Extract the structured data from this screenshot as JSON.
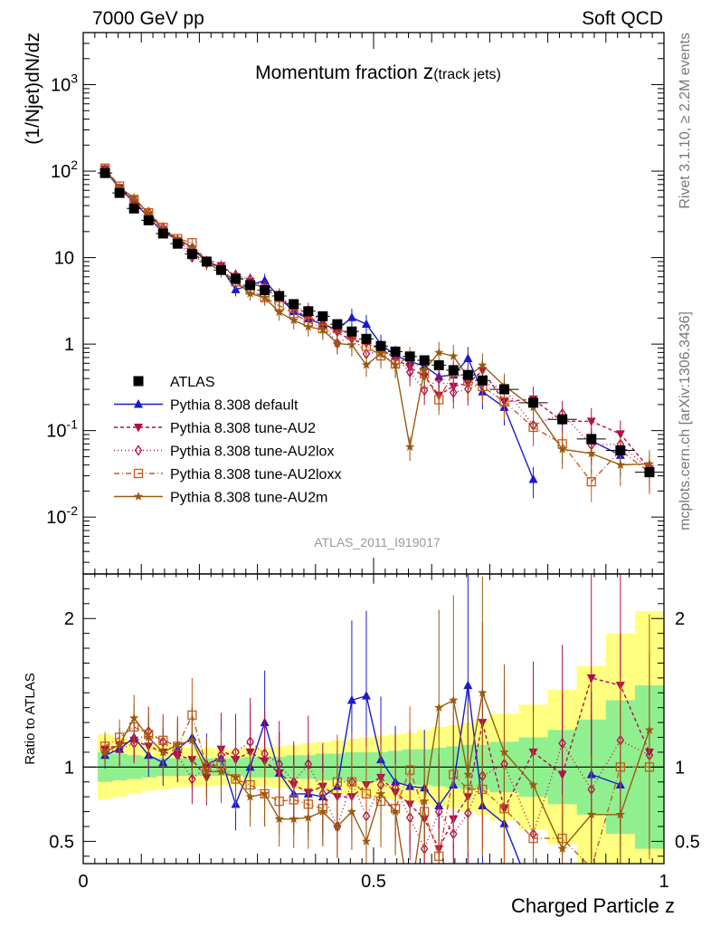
{
  "header": {
    "left": "7000 GeV pp",
    "right": "Soft QCD"
  },
  "side_text": {
    "rivet": "Rivet 3.1.10, ≥ 2.2M events",
    "site": "mcplots.cern.ch [arXiv:1306.3436]"
  },
  "watermark": "ATLAS_2011_I919017",
  "chart_data": {
    "type": "scatter",
    "title_main": "Momentum fraction ",
    "title_z": "z",
    "title_sub": "(track jets)",
    "ylabel": "(1/Njet)dN/dz",
    "xlabel": "Charged Particle z",
    "ratio_ylabel": "Ratio to ATLAS",
    "xlim": [
      0,
      1
    ],
    "ylim": [
      0.0022,
      4000
    ],
    "yscale": "log",
    "ratio_ylim": [
      0.35,
      2.3
    ],
    "x_ticks": [
      "0",
      "0.5",
      "1"
    ],
    "y_ticks": [
      {
        "v": 0.01,
        "label": "10",
        "sup": "-2"
      },
      {
        "v": 0.1,
        "label": "10",
        "sup": "-1"
      },
      {
        "v": 1,
        "label": "1",
        "sup": ""
      },
      {
        "v": 10,
        "label": "10",
        "sup": ""
      },
      {
        "v": 100,
        "label": "10",
        "sup": "2"
      },
      {
        "v": 1000,
        "label": "10",
        "sup": "3"
      }
    ],
    "ratio_ticks": [
      "0.5",
      "1",
      "2"
    ],
    "legend_position": "lower-left",
    "x": [
      0.0375,
      0.0625,
      0.0875,
      0.1125,
      0.1375,
      0.1625,
      0.1875,
      0.2125,
      0.2375,
      0.2625,
      0.2875,
      0.3125,
      0.3375,
      0.3625,
      0.3875,
      0.4125,
      0.4375,
      0.4625,
      0.4875,
      0.5125,
      0.5375,
      0.5625,
      0.5875,
      0.6125,
      0.6375,
      0.6625,
      0.6875,
      0.725,
      0.775,
      0.825,
      0.875,
      0.925,
      0.975
    ],
    "data": {
      "name": "ATLAS",
      "values": [
        95,
        56,
        37,
        27,
        19,
        14.5,
        11,
        9,
        7.2,
        5.7,
        4.8,
        4.2,
        3.6,
        2.9,
        2.4,
        2.1,
        1.7,
        1.4,
        1.15,
        0.95,
        0.82,
        0.72,
        0.65,
        0.57,
        0.5,
        0.44,
        0.38,
        0.3,
        0.21,
        0.135,
        0.08,
        0.059,
        0.033
      ]
    },
    "band_inner": [
      0.1,
      0.09,
      0.08,
      0.07,
      0.06,
      0.06,
      0.06,
      0.06,
      0.06,
      0.06,
      0.07,
      0.07,
      0.07,
      0.08,
      0.08,
      0.09,
      0.09,
      0.1,
      0.1,
      0.1,
      0.11,
      0.12,
      0.12,
      0.13,
      0.14,
      0.15,
      0.15,
      0.17,
      0.2,
      0.25,
      0.32,
      0.45,
      0.55
    ],
    "band_outer": [
      0.22,
      0.2,
      0.18,
      0.16,
      0.15,
      0.14,
      0.13,
      0.13,
      0.12,
      0.12,
      0.13,
      0.13,
      0.14,
      0.15,
      0.16,
      0.17,
      0.18,
      0.19,
      0.2,
      0.21,
      0.22,
      0.23,
      0.25,
      0.27,
      0.28,
      0.3,
      0.32,
      0.36,
      0.42,
      0.52,
      0.68,
      0.9,
      1.05
    ],
    "series": [
      {
        "name": "Pythia 8.308 default",
        "color": "#1a1acc",
        "marker": "triangle-up",
        "dash": "",
        "ratio": [
          1.08,
          1.12,
          1.2,
          1.08,
          1.03,
          1.12,
          1.2,
          1.02,
          1.06,
          0.75,
          1.0,
          1.3,
          0.96,
          0.82,
          0.82,
          0.8,
          0.87,
          1.45,
          1.48,
          1.05,
          0.9,
          0.87,
          0.86,
          0.74,
          0.88,
          1.55,
          0.74,
          0.62,
          0.13,
          null,
          0.95,
          0.88,
          null
        ]
      },
      {
        "name": "Pythia 8.308 tune-AU2",
        "color": "#b0104a",
        "marker": "triangle-down",
        "dash": "4,3",
        "ratio": [
          1.12,
          1.15,
          1.18,
          1.14,
          1.1,
          1.08,
          1.05,
          0.93,
          1.12,
          1.05,
          1.1,
          1.04,
          0.96,
          0.88,
          0.83,
          0.87,
          0.8,
          0.8,
          0.88,
          0.93,
          0.83,
          0.75,
          0.65,
          0.45,
          0.65,
          0.8,
          1.3,
          0.72,
          1.1,
          0.95,
          1.6,
          1.55,
          1.1
        ]
      },
      {
        "name": "Pythia 8.308 tune-AU2lox",
        "color": "#b0104a",
        "marker": "diamond-open",
        "dash": "1,3",
        "ratio": [
          1.1,
          1.12,
          1.16,
          1.24,
          1.17,
          1.08,
          0.92,
          1.0,
          1.08,
          1.1,
          1.17,
          1.09,
          1.02,
          0.9,
          1.02,
          0.82,
          0.6,
          0.9,
          0.67,
          0.88,
          0.86,
          0.66,
          0.45,
          0.7,
          0.55,
          0.69,
          0.94,
          1.02,
          0.55,
          1.16,
          0.85,
          1.18,
          1.08
        ]
      },
      {
        "name": "Pythia 8.308 tune-AU2loxx",
        "color": "#c75a1a",
        "marker": "square-open",
        "dash": "6,3,1,3",
        "ratio": [
          1.14,
          1.2,
          1.27,
          1.22,
          1.18,
          1.14,
          1.35,
          1.0,
          1.02,
          0.92,
          0.88,
          0.82,
          0.77,
          0.78,
          0.75,
          0.72,
          0.9,
          0.9,
          0.82,
          0.77,
          0.72,
          0.98,
          0.7,
          0.4,
          0.95,
          0.85,
          0.85,
          0.72,
          0.52,
          0.52,
          0.32,
          1.0,
          1.0
        ]
      },
      {
        "name": "Pythia 8.308 tune-AU2m",
        "color": "#9a5a10",
        "marker": "star",
        "dash": "",
        "ratio": [
          1.1,
          1.15,
          1.33,
          1.2,
          1.1,
          1.15,
          1.18,
          0.97,
          0.97,
          0.93,
          0.8,
          0.82,
          0.65,
          0.65,
          0.66,
          0.7,
          0.6,
          0.7,
          0.5,
          0.82,
          0.7,
          0.09,
          0.77,
          1.4,
          1.45,
          0.95,
          1.5,
          1.1,
          0.88,
          0.45,
          0.68,
          0.68,
          1.25
        ]
      }
    ]
  }
}
